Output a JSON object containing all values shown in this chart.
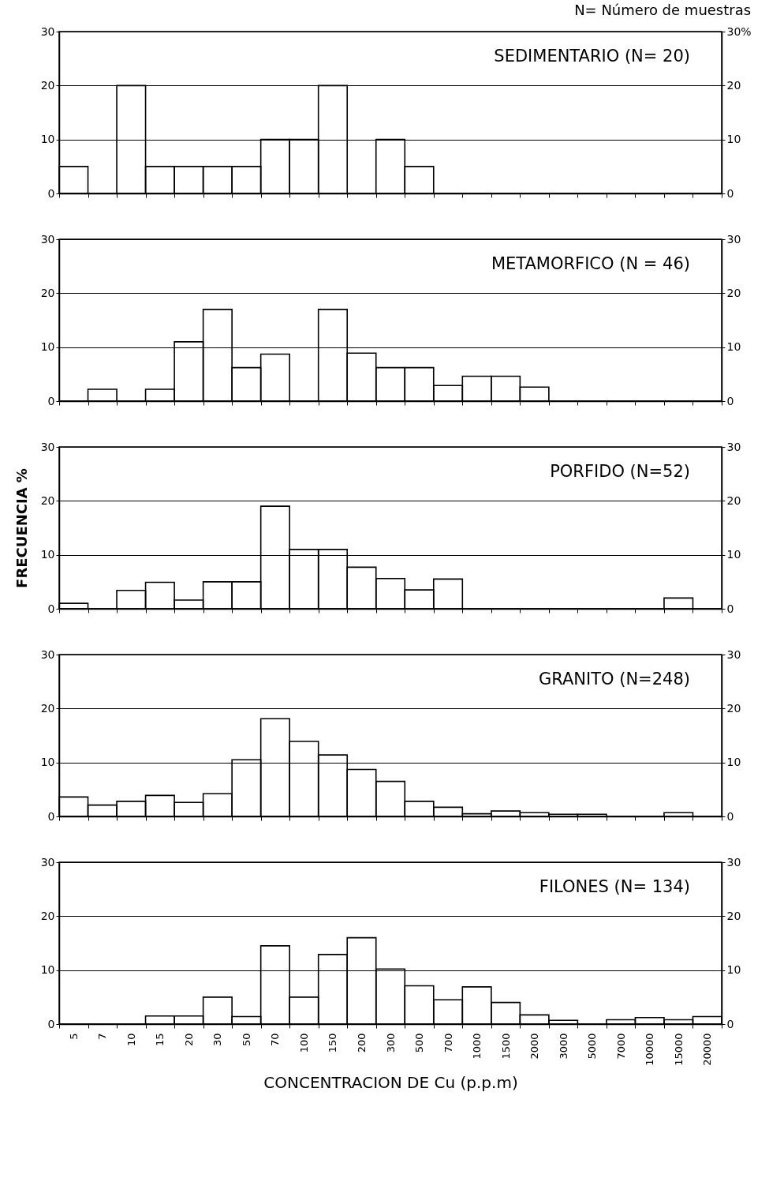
{
  "chart_data": [
    {
      "type": "bar",
      "title": "SEDIMENTARIO (N= 20)",
      "annotations": [
        "N= Número de muestras"
      ],
      "categories": [
        "5",
        "7",
        "10",
        "15",
        "20",
        "30",
        "50",
        "70",
        "100",
        "150",
        "200",
        "300",
        "500",
        "700",
        "1000",
        "1500",
        "2000",
        "3000",
        "5000",
        "7000",
        "10000",
        "15000",
        "20000"
      ],
      "values": [
        5,
        0,
        20,
        5,
        5,
        5,
        5,
        10,
        10,
        20,
        0,
        10,
        5,
        0,
        0,
        0,
        0,
        0,
        0,
        0,
        0,
        0,
        0
      ],
      "color": "#000000",
      "ylim": [
        0,
        30
      ],
      "yticks": [
        0,
        10,
        20,
        30
      ],
      "y2lim": [
        0,
        30
      ],
      "y2ticks": [
        0,
        10,
        20,
        {
          "value": 30,
          "label": "30%"
        }
      ],
      "grid": "y",
      "tick_labels": "y"
    },
    {
      "type": "bar",
      "title": "METAMORFICO (N = 46)",
      "categories": [
        "5",
        "7",
        "10",
        "15",
        "20",
        "30",
        "50",
        "70",
        "100",
        "150",
        "200",
        "300",
        "500",
        "700",
        "1000",
        "1500",
        "2000",
        "3000",
        "5000",
        "7000",
        "10000",
        "15000",
        "20000"
      ],
      "values": [
        0,
        2.2,
        0,
        2.2,
        11,
        17,
        6.2,
        8.7,
        0,
        17,
        8.9,
        6.2,
        6.2,
        2.9,
        4.6,
        4.6,
        2.6,
        0,
        0,
        0,
        0,
        0,
        0
      ],
      "color": "#000000",
      "ylim": [
        0,
        30
      ],
      "yticks": [
        0,
        10,
        20,
        30
      ],
      "y2lim": [
        0,
        30
      ],
      "y2ticks": [
        0,
        10,
        20,
        30
      ],
      "grid": "y",
      "tick_labels": "y"
    },
    {
      "type": "bar",
      "title": "PORFIDO (N=52)",
      "ylabel": "FRECUENCIA %",
      "categories": [
        "5",
        "7",
        "10",
        "15",
        "20",
        "30",
        "50",
        "70",
        "100",
        "150",
        "200",
        "300",
        "500",
        "700",
        "1000",
        "1500",
        "2000",
        "3000",
        "5000",
        "7000",
        "10000",
        "15000",
        "20000"
      ],
      "values": [
        1,
        0,
        3.4,
        4.9,
        1.6,
        5,
        5,
        19,
        11,
        11,
        7.7,
        5.6,
        3.5,
        5.5,
        0,
        0,
        0,
        0,
        0,
        0,
        0,
        2,
        0
      ],
      "color": "#000000",
      "ylim": [
        0,
        30
      ],
      "yticks": [
        0,
        10,
        20,
        30
      ],
      "y2lim": [
        0,
        30
      ],
      "y2ticks": [
        0,
        10,
        20,
        30
      ],
      "grid": "y",
      "tick_labels": "y"
    },
    {
      "type": "bar",
      "title": "GRANITO (N=248)",
      "categories": [
        "5",
        "7",
        "10",
        "15",
        "20",
        "30",
        "50",
        "70",
        "100",
        "150",
        "200",
        "300",
        "500",
        "700",
        "1000",
        "1500",
        "2000",
        "3000",
        "5000",
        "7000",
        "10000",
        "15000",
        "20000"
      ],
      "values": [
        3.6,
        2.1,
        2.8,
        3.9,
        2.6,
        4.2,
        10.5,
        18.1,
        13.9,
        11.4,
        8.7,
        6.5,
        2.8,
        1.7,
        0.5,
        1,
        0.7,
        0.4,
        0.4,
        0,
        0,
        0.7,
        0
      ],
      "color": "#000000",
      "ylim": [
        0,
        30
      ],
      "yticks": [
        0,
        10,
        20,
        30
      ],
      "y2lim": [
        0,
        30
      ],
      "y2ticks": [
        0,
        10,
        20,
        30
      ],
      "grid": "y",
      "tick_labels": "y"
    },
    {
      "type": "bar",
      "title": "FILONES (N= 134)",
      "xlabel": "CONCENTRACION DE Cu (p.p.m)",
      "categories": [
        "5",
        "7",
        "10",
        "15",
        "20",
        "30",
        "50",
        "70",
        "100",
        "150",
        "200",
        "300",
        "500",
        "700",
        "1000",
        "1500",
        "2000",
        "3000",
        "5000",
        "7000",
        "10000",
        "15000",
        "20000"
      ],
      "values": [
        0,
        0,
        0,
        1.5,
        1.5,
        5,
        1.4,
        14.5,
        5,
        12.9,
        16,
        10.2,
        7.1,
        4.5,
        6.9,
        4,
        1.7,
        0.7,
        0,
        0.8,
        1.2,
        0.8,
        1.4
      ],
      "color": "#000000",
      "ylim": [
        0,
        30
      ],
      "yticks": [
        0,
        10,
        20,
        30
      ],
      "y2lim": [
        0,
        30
      ],
      "y2ticks": [
        0,
        10,
        20,
        30
      ],
      "grid": "y"
    }
  ]
}
